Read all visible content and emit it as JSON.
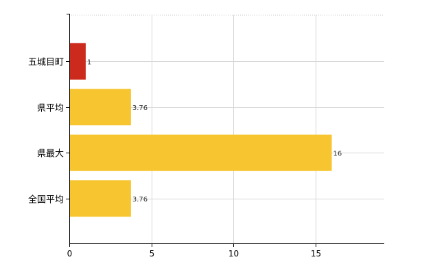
{
  "chart_data": {
    "type": "bar",
    "orientation": "horizontal",
    "categories": [
      "五城目町",
      "県平均",
      "県最大",
      "全国平均"
    ],
    "values": [
      1,
      3.76,
      16,
      3.76
    ],
    "data_labels": [
      "1",
      "3.76",
      "16",
      "3.76"
    ],
    "bar_colors": [
      "#cc2a1c",
      "#f7c52f",
      "#f7c52f",
      "#f7c52f"
    ],
    "xlim": [
      0,
      19.2
    ],
    "xticks": [
      0,
      5,
      10,
      15
    ],
    "grid": true
  }
}
